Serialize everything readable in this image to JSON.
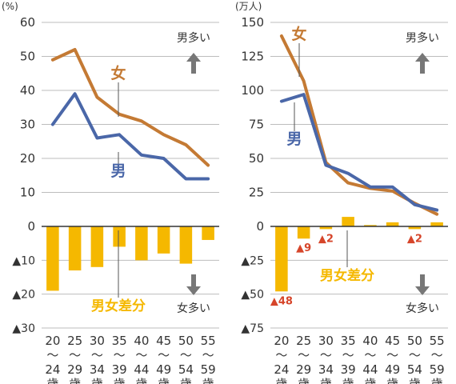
{
  "colors": {
    "male": "#4a67a8",
    "female": "#c47a34",
    "diff": "#f5b800",
    "neg_label": "#d6452a",
    "grid": "#bdbdbd",
    "zero": "#333333",
    "axis_text": "#333333",
    "arrow": "#777777"
  },
  "chart_data": [
    {
      "type": "line",
      "ylabel": "(%)",
      "upper_ticks": [
        "60",
        "50",
        "40",
        "30",
        "20",
        "10",
        "0"
      ],
      "lower_ticks": [
        "▲10",
        "▲20",
        "▲30"
      ],
      "ylim": [
        -30,
        60
      ],
      "categories": [
        [
          "20",
          "〜",
          "24",
          "歳"
        ],
        [
          "25",
          "〜",
          "29",
          "歳"
        ],
        [
          "30",
          "〜",
          "34",
          "歳"
        ],
        [
          "35",
          "〜",
          "39",
          "歳"
        ],
        [
          "40",
          "〜",
          "44",
          "歳"
        ],
        [
          "45",
          "〜",
          "49",
          "歳"
        ],
        [
          "50",
          "〜",
          "54",
          "歳"
        ],
        [
          "55",
          "〜",
          "59",
          "歳"
        ]
      ],
      "series": [
        {
          "name": "女",
          "values": [
            49,
            52,
            38,
            33,
            31,
            27,
            24,
            18
          ]
        },
        {
          "name": "男",
          "values": [
            30,
            39,
            26,
            27,
            21,
            20,
            14,
            14
          ]
        }
      ],
      "difference": {
        "name": "男女差分",
        "values": [
          -19,
          -13,
          -12,
          -6,
          -10,
          -8,
          -11,
          -4
        ],
        "value_labels": []
      },
      "arrow_up_label": "男多い",
      "arrow_down_label": "女多い"
    },
    {
      "type": "line",
      "ylabel": "(万人)",
      "upper_ticks": [
        "150",
        "125",
        "100",
        "75",
        "50",
        "25",
        "0"
      ],
      "lower_ticks": [
        "▲25",
        "▲50",
        "▲75"
      ],
      "ylim": [
        -75,
        150
      ],
      "categories": [
        [
          "20",
          "〜",
          "24",
          "歳"
        ],
        [
          "25",
          "〜",
          "29",
          "歳"
        ],
        [
          "30",
          "〜",
          "34",
          "歳"
        ],
        [
          "35",
          "〜",
          "39",
          "歳"
        ],
        [
          "40",
          "〜",
          "44",
          "歳"
        ],
        [
          "45",
          "〜",
          "49",
          "歳"
        ],
        [
          "50",
          "〜",
          "54",
          "歳"
        ],
        [
          "55",
          "〜",
          "59",
          "歳"
        ]
      ],
      "series": [
        {
          "name": "女",
          "values": [
            140,
            107,
            47,
            32,
            28,
            26,
            17,
            9
          ]
        },
        {
          "name": "男",
          "values": [
            92,
            97,
            45,
            39,
            29,
            29,
            16,
            12
          ]
        }
      ],
      "difference": {
        "name": "男女差分",
        "values": [
          -48,
          -9,
          -2,
          7,
          1,
          3,
          -2,
          3
        ],
        "value_labels": [
          "▲48",
          "▲9",
          "▲2",
          "",
          "",
          "",
          "▲2",
          ""
        ]
      },
      "arrow_up_label": "男多い",
      "arrow_down_label": "女多い"
    }
  ]
}
